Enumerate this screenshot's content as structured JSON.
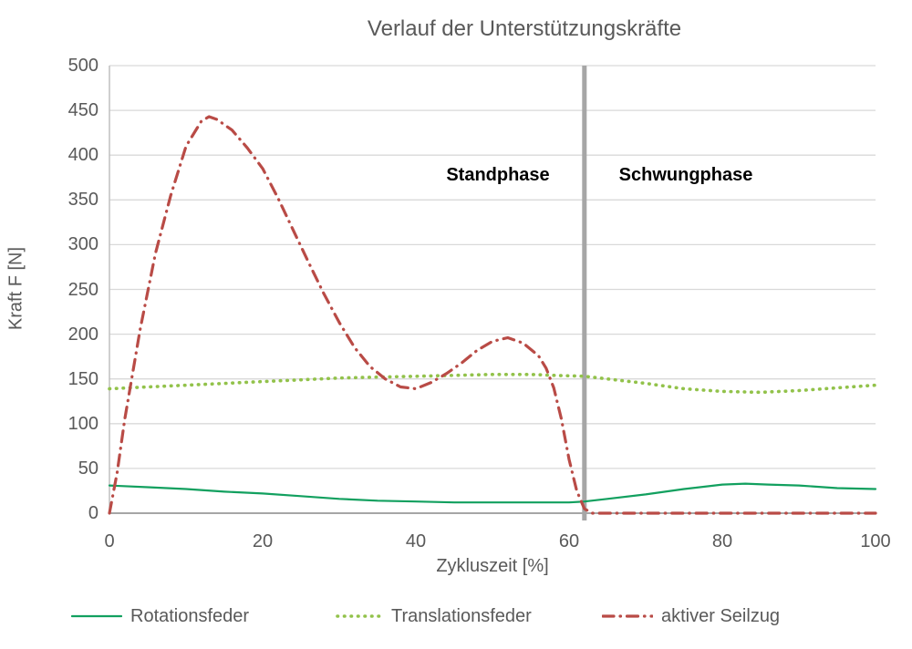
{
  "chart_data": {
    "type": "line",
    "title": "Verlauf der Unterstützungskräfte",
    "xlabel": "Zykluszeit [%]",
    "ylabel": "Kraft F [N]",
    "xlim": [
      0,
      100
    ],
    "ylim": [
      0,
      500
    ],
    "xticks": [
      0,
      20,
      40,
      60,
      80,
      100
    ],
    "yticks": [
      0,
      50,
      100,
      150,
      200,
      250,
      300,
      350,
      400,
      450,
      500
    ],
    "grid": "horizontal",
    "legend_position": "bottom",
    "phase_divider": {
      "x": 62,
      "left_label": "Standphase",
      "right_label": "Schwungphase",
      "color": "#a6a6a6"
    },
    "series": [
      {
        "name": "Rotationsfeder",
        "style": "solid",
        "color": "#12a05f",
        "x": [
          0,
          5,
          10,
          15,
          20,
          25,
          30,
          35,
          40,
          45,
          50,
          55,
          60,
          62,
          65,
          70,
          75,
          80,
          83,
          86,
          90,
          95,
          100
        ],
        "y": [
          31,
          29,
          27,
          24,
          22,
          19,
          16,
          14,
          13,
          12,
          12,
          12,
          12,
          13,
          16,
          21,
          27,
          32,
          33,
          32,
          31,
          28,
          27
        ]
      },
      {
        "name": "Translationsfeder",
        "style": "dotted",
        "color": "#92c24a",
        "x": [
          0,
          5,
          10,
          15,
          20,
          25,
          30,
          35,
          40,
          45,
          50,
          55,
          58,
          62,
          65,
          70,
          75,
          80,
          85,
          90,
          95,
          100
        ],
        "y": [
          139,
          141,
          143,
          145,
          147,
          149,
          151,
          152,
          153,
          154,
          155,
          155,
          154,
          153,
          150,
          145,
          139,
          136,
          135,
          137,
          140,
          143
        ]
      },
      {
        "name": "aktiver Seilzug",
        "style": "dashdot",
        "color": "#b94b46",
        "x": [
          0,
          1,
          2,
          4,
          6,
          8,
          10,
          12,
          13,
          14,
          16,
          18,
          20,
          22,
          24,
          26,
          28,
          30,
          32,
          34,
          36,
          38,
          40,
          42,
          44,
          46,
          48,
          50,
          52,
          54,
          56,
          57,
          58,
          59,
          60,
          61,
          62,
          63,
          65,
          70,
          75,
          80,
          85,
          90,
          95,
          100
        ],
        "y": [
          0,
          45,
          105,
          205,
          290,
          355,
          410,
          438,
          443,
          440,
          428,
          408,
          385,
          352,
          316,
          280,
          245,
          213,
          185,
          164,
          150,
          141,
          139,
          146,
          156,
          168,
          182,
          192,
          196,
          190,
          176,
          162,
          140,
          105,
          60,
          25,
          5,
          0,
          0,
          0,
          0,
          0,
          0,
          0,
          0,
          0
        ]
      }
    ]
  },
  "colors": {
    "grid": "#d9d9d9",
    "axis": "#a6a6a6",
    "y_axis_line": "#bfbfbf",
    "text": "#595959",
    "phase_label": "#000000"
  }
}
